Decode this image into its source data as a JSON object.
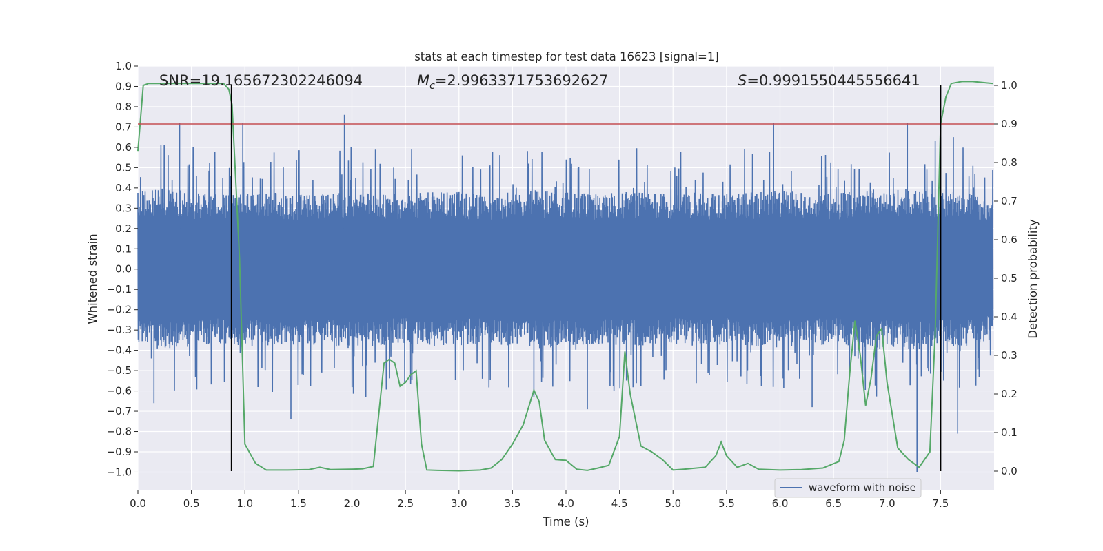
{
  "chart_data": {
    "type": "line",
    "title": "stats at each timestep for test data 16623 [signal=1]",
    "xlabel": "Time (s)",
    "ylabel": "Whitened strain",
    "y2label": "Detection probability",
    "xlim": [
      0.0,
      8.0
    ],
    "ylim": [
      -1.09,
      1.0
    ],
    "y2lim": [
      -0.05,
      1.05
    ],
    "xticks": [
      "0.0",
      "0.5",
      "1.0",
      "1.5",
      "2.0",
      "2.5",
      "3.0",
      "3.5",
      "4.0",
      "4.5",
      "5.0",
      "5.5",
      "6.0",
      "6.5",
      "7.0",
      "7.5"
    ],
    "yticks": [
      "1.0",
      "0.9",
      "0.8",
      "0.7",
      "0.6",
      "0.5",
      "0.4",
      "0.3",
      "0.2",
      "0.1",
      "0.0",
      "-0.1",
      "-0.2",
      "-0.3",
      "-0.4",
      "-0.5",
      "-0.6",
      "-0.7",
      "-0.8",
      "-0.9",
      "-1.0"
    ],
    "y2ticks": [
      "0.0",
      "0.1",
      "0.2",
      "0.3",
      "0.4",
      "0.5",
      "0.6",
      "0.7",
      "0.8",
      "0.9",
      "1.0"
    ],
    "grid": true,
    "annotations": {
      "snr": "SNR=19.165672302246094",
      "mc_symbol": "M",
      "mc_sub": "c",
      "mc_value": "=2.9963371753692627",
      "s_symbol": "S",
      "s_value": "=0.9991550445556641"
    },
    "legend": {
      "label": "waveform with noise",
      "position": "lower-right"
    },
    "colors": {
      "waveform": "#4c72b0",
      "probability": "#55a868",
      "threshold": "#c44e52",
      "markers": "#000000",
      "background": "#eaeaf2"
    },
    "threshold": 0.9,
    "vertical_markers_x": [
      0.875,
      7.5
    ],
    "series": [
      {
        "name": "waveform with noise",
        "envelope_x": [
          0.0,
          0.25,
          0.5,
          0.75,
          1.0,
          1.25,
          1.5,
          1.75,
          2.0,
          2.25,
          2.5,
          2.75,
          3.0,
          3.25,
          3.5,
          3.75,
          4.0,
          4.25,
          4.5,
          4.75,
          5.0,
          5.25,
          5.5,
          5.75,
          6.0,
          6.25,
          6.5,
          6.75,
          7.0,
          7.25,
          7.5,
          7.75,
          7.99
        ],
        "envelope_y": [
          0.38,
          0.4,
          0.38,
          0.37,
          0.39,
          0.38,
          0.37,
          0.38,
          0.39,
          0.38,
          0.37,
          0.38,
          0.38,
          0.37,
          0.38,
          0.39,
          0.38,
          0.37,
          0.38,
          0.38,
          0.37,
          0.38,
          0.37,
          0.38,
          0.39,
          0.38,
          0.37,
          0.4,
          0.39,
          0.4,
          0.38,
          0.38,
          0.35
        ],
        "peaks": [
          [
            0.39,
            0.72
          ],
          [
            0.98,
            0.72
          ],
          [
            1.93,
            0.76
          ],
          [
            2.39,
            0.5
          ],
          [
            3.65,
            0.52
          ],
          [
            3.7,
            -0.63
          ],
          [
            4.2,
            -0.69
          ],
          [
            5.94,
            0.72
          ],
          [
            7.19,
            0.72
          ],
          [
            7.28,
            -1.0
          ],
          [
            7.45,
            0.63
          ],
          [
            7.5,
            0.65
          ],
          [
            7.62,
            0.65
          ],
          [
            7.66,
            -0.81
          ],
          [
            1.43,
            -0.74
          ],
          [
            0.15,
            -0.66
          ],
          [
            2.13,
            -0.63
          ],
          [
            6.3,
            -0.68
          ]
        ]
      },
      {
        "name": "",
        "axis": "y2",
        "x": [
          0.0,
          0.05,
          0.1,
          0.2,
          0.4,
          0.6,
          0.8,
          0.85,
          0.88,
          0.95,
          1.0,
          1.1,
          1.2,
          1.4,
          1.6,
          1.7,
          1.8,
          2.0,
          2.1,
          2.2,
          2.3,
          2.35,
          2.4,
          2.45,
          2.5,
          2.55,
          2.6,
          2.65,
          2.7,
          2.8,
          3.0,
          3.2,
          3.3,
          3.4,
          3.5,
          3.6,
          3.7,
          3.75,
          3.8,
          3.9,
          4.0,
          4.1,
          4.2,
          4.3,
          4.4,
          4.5,
          4.55,
          4.6,
          4.7,
          4.8,
          4.9,
          5.0,
          5.1,
          5.3,
          5.4,
          5.45,
          5.5,
          5.6,
          5.7,
          5.8,
          6.0,
          6.2,
          6.4,
          6.55,
          6.6,
          6.65,
          6.7,
          6.75,
          6.8,
          6.85,
          6.9,
          6.95,
          7.0,
          7.1,
          7.2,
          7.3,
          7.4,
          7.45,
          7.5,
          7.55,
          7.6,
          7.7,
          7.8,
          7.99
        ],
        "y": [
          0.83,
          1.0,
          1.005,
          1.005,
          1.005,
          1.005,
          1.005,
          0.99,
          0.95,
          0.55,
          0.07,
          0.02,
          0.003,
          0.003,
          0.004,
          0.01,
          0.004,
          0.005,
          0.006,
          0.012,
          0.28,
          0.29,
          0.28,
          0.22,
          0.23,
          0.25,
          0.26,
          0.07,
          0.003,
          0.002,
          0.001,
          0.003,
          0.008,
          0.03,
          0.07,
          0.12,
          0.21,
          0.18,
          0.08,
          0.03,
          0.028,
          0.005,
          0.002,
          0.008,
          0.015,
          0.09,
          0.31,
          0.2,
          0.065,
          0.05,
          0.03,
          0.003,
          0.005,
          0.01,
          0.04,
          0.075,
          0.04,
          0.01,
          0.02,
          0.005,
          0.003,
          0.004,
          0.008,
          0.025,
          0.08,
          0.25,
          0.39,
          0.3,
          0.17,
          0.24,
          0.35,
          0.37,
          0.23,
          0.06,
          0.03,
          0.01,
          0.05,
          0.36,
          0.9,
          0.97,
          1.005,
          1.01,
          1.01,
          1.005
        ]
      }
    ]
  }
}
